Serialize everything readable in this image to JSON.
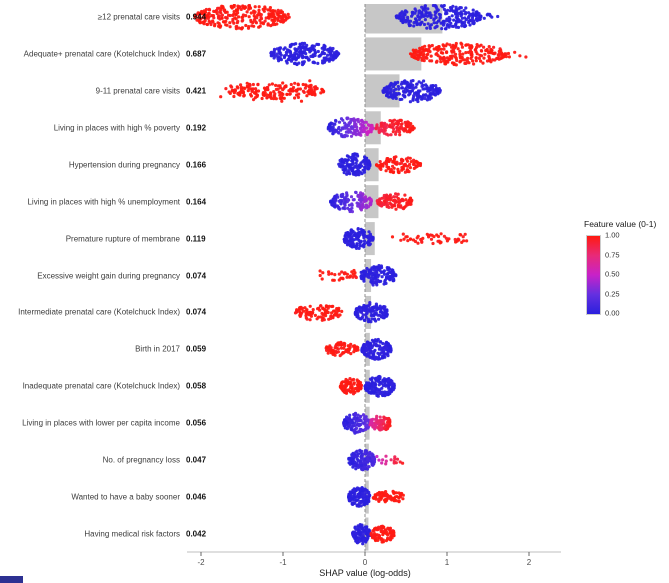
{
  "chart_data": {
    "type": "scatter",
    "subtype": "shap-summary-beeswarm",
    "title": "",
    "xlabel": "SHAP value (log-odds)",
    "xlim": [
      -2.2,
      2.4
    ],
    "x_ticks": [
      -2,
      -1,
      0,
      1,
      2
    ],
    "zero_line": true,
    "grid": false,
    "bar_color": "#c7c7c7",
    "gradient_stops": [
      {
        "at": 0.0,
        "color": "#2a20dd"
      },
      {
        "at": 0.25,
        "color": "#6430e0"
      },
      {
        "at": 0.5,
        "color": "#c822c8"
      },
      {
        "at": 0.75,
        "color": "#e82a78"
      },
      {
        "at": 1.0,
        "color": "#ff1a10"
      }
    ],
    "legend": {
      "title": "Feature value (0-1)",
      "tick_labels": [
        "1.00",
        "0.75",
        "0.50",
        "0.25",
        "0.00"
      ],
      "position": "right"
    },
    "features": [
      {
        "label": "≥12 prenatal care visits",
        "importance": "0.944",
        "mean_abs_shap": 0.944,
        "clusters": [
          {
            "x0": -2.08,
            "x1": -0.92,
            "v0": 1,
            "v1": 1,
            "n": 260,
            "amp": 12,
            "shape": "dense"
          },
          {
            "x0": 0.38,
            "x1": 1.42,
            "v0": 0,
            "v1": 0,
            "n": 260,
            "amp": 12,
            "shape": "dense"
          },
          {
            "x0": 1.42,
            "x1": 1.62,
            "v0": 0,
            "v1": 0,
            "n": 7,
            "amp": 4,
            "shape": "spread"
          }
        ]
      },
      {
        "label": "Adequate+ prenatal care (Kotelchuck Index)",
        "importance": "0.687",
        "mean_abs_shap": 0.687,
        "clusters": [
          {
            "x0": -1.15,
            "x1": -0.32,
            "v0": 0,
            "v1": 0,
            "n": 230,
            "amp": 11,
            "shape": "dense"
          },
          {
            "x0": 0.55,
            "x1": 1.72,
            "v0": 1,
            "v1": 1,
            "n": 230,
            "amp": 11,
            "shape": "dense"
          },
          {
            "x0": 1.72,
            "x1": 1.97,
            "v0": 1,
            "v1": 1,
            "n": 6,
            "amp": 4,
            "shape": "spread"
          }
        ]
      },
      {
        "label": "9-11 prenatal care visits",
        "importance": "0.421",
        "mean_abs_shap": 0.421,
        "clusters": [
          {
            "x0": -1.62,
            "x1": -0.5,
            "v0": 1,
            "v1": 1,
            "n": 150,
            "amp": 8,
            "shape": "dense"
          },
          {
            "x0": -1.78,
            "x1": -1.5,
            "v0": 1,
            "v1": 1,
            "n": 10,
            "amp": 6,
            "shape": "spread"
          },
          {
            "x0": -1.55,
            "x1": -0.55,
            "v0": 1,
            "v1": 1,
            "n": 30,
            "amp": 11,
            "shape": "spread"
          },
          {
            "x0": 0.22,
            "x1": 0.92,
            "v0": 0,
            "v1": 0,
            "n": 190,
            "amp": 11,
            "shape": "dense"
          }
        ]
      },
      {
        "label": "Living in places with high % poverty",
        "importance": "0.192",
        "mean_abs_shap": 0.192,
        "clusters": [
          {
            "x0": -0.45,
            "x1": 0.1,
            "v0": 0,
            "v1": 0.55,
            "n": 140,
            "amp": 10,
            "shape": "dense"
          },
          {
            "x0": 0.12,
            "x1": 0.6,
            "v0": 0.85,
            "v1": 1,
            "n": 100,
            "amp": 8,
            "shape": "dense"
          }
        ]
      },
      {
        "label": "Hypertension during pregnancy",
        "importance": "0.166",
        "mean_abs_shap": 0.166,
        "clusters": [
          {
            "x0": -0.32,
            "x1": 0.06,
            "v0": 0,
            "v1": 0,
            "n": 140,
            "amp": 11,
            "shape": "dense"
          },
          {
            "x0": 0.14,
            "x1": 0.68,
            "v0": 1,
            "v1": 1,
            "n": 110,
            "amp": 8,
            "shape": "dense"
          }
        ]
      },
      {
        "label": "Living in places with high % unemployment",
        "importance": "0.164",
        "mean_abs_shap": 0.164,
        "clusters": [
          {
            "x0": -0.42,
            "x1": 0.08,
            "v0": 0,
            "v1": 0.45,
            "n": 140,
            "amp": 10,
            "shape": "dense"
          },
          {
            "x0": 0.15,
            "x1": 0.58,
            "v0": 0.9,
            "v1": 1,
            "n": 100,
            "amp": 8,
            "shape": "dense"
          }
        ]
      },
      {
        "label": "Premature rupture of membrane",
        "importance": "0.119",
        "mean_abs_shap": 0.119,
        "clusters": [
          {
            "x0": -0.26,
            "x1": 0.1,
            "v0": 0,
            "v1": 0,
            "n": 140,
            "amp": 10,
            "shape": "dense"
          },
          {
            "x0": 0.32,
            "x1": 1.25,
            "v0": 1,
            "v1": 1,
            "n": 50,
            "amp": 5,
            "shape": "spread"
          }
        ]
      },
      {
        "label": "Excessive weight gain during pregnancy",
        "importance": "0.074",
        "mean_abs_shap": 0.074,
        "clusters": [
          {
            "x0": -0.55,
            "x1": -0.1,
            "v0": 1,
            "v1": 1,
            "n": 30,
            "amp": 5,
            "shape": "spread"
          },
          {
            "x0": -0.06,
            "x1": 0.38,
            "v0": 0,
            "v1": 0,
            "n": 140,
            "amp": 10,
            "shape": "dense"
          }
        ]
      },
      {
        "label": "Intermediate prenatal care (Kotelchuck Index)",
        "importance": "0.074",
        "mean_abs_shap": 0.074,
        "clusters": [
          {
            "x0": -0.85,
            "x1": -0.28,
            "v0": 1,
            "v1": 1,
            "n": 100,
            "amp": 8,
            "shape": "dense"
          },
          {
            "x0": -0.12,
            "x1": 0.28,
            "v0": 0,
            "v1": 0,
            "n": 140,
            "amp": 10,
            "shape": "dense"
          }
        ]
      },
      {
        "label": "Birth in 2017",
        "importance": "0.059",
        "mean_abs_shap": 0.059,
        "clusters": [
          {
            "x0": -0.48,
            "x1": -0.08,
            "v0": 1,
            "v1": 1,
            "n": 80,
            "amp": 7,
            "shape": "dense"
          },
          {
            "x0": -0.04,
            "x1": 0.32,
            "v0": 0,
            "v1": 0,
            "n": 140,
            "amp": 10,
            "shape": "dense"
          }
        ]
      },
      {
        "label": "Inadequate prenatal care (Kotelchuck Index)",
        "importance": "0.058",
        "mean_abs_shap": 0.058,
        "clusters": [
          {
            "x0": -0.3,
            "x1": -0.04,
            "v0": 1,
            "v1": 1,
            "n": 90,
            "amp": 8,
            "shape": "dense"
          },
          {
            "x0": 0.0,
            "x1": 0.36,
            "v0": 0,
            "v1": 0,
            "n": 140,
            "amp": 10,
            "shape": "dense"
          }
        ]
      },
      {
        "label": "Living in places with lower per capita income",
        "importance": "0.056",
        "mean_abs_shap": 0.056,
        "clusters": [
          {
            "x0": -0.26,
            "x1": 0.06,
            "v0": 0,
            "v1": 0.25,
            "n": 130,
            "amp": 10,
            "shape": "dense"
          },
          {
            "x0": 0.06,
            "x1": 0.32,
            "v0": 0.6,
            "v1": 1,
            "n": 90,
            "amp": 8,
            "shape": "dense"
          }
        ]
      },
      {
        "label": "No. of pregnancy loss",
        "importance": "0.047",
        "mean_abs_shap": 0.047,
        "clusters": [
          {
            "x0": -0.2,
            "x1": 0.12,
            "v0": 0,
            "v1": 0.15,
            "n": 140,
            "amp": 10,
            "shape": "dense"
          },
          {
            "x0": 0.14,
            "x1": 0.46,
            "v0": 0.5,
            "v1": 1,
            "n": 16,
            "amp": 4,
            "shape": "spread"
          }
        ]
      },
      {
        "label": "Wanted to have a baby sooner",
        "importance": "0.046",
        "mean_abs_shap": 0.046,
        "clusters": [
          {
            "x0": -0.2,
            "x1": 0.06,
            "v0": 0,
            "v1": 0,
            "n": 120,
            "amp": 10,
            "shape": "dense"
          },
          {
            "x0": 0.1,
            "x1": 0.5,
            "v0": 1,
            "v1": 1,
            "n": 70,
            "amp": 6,
            "shape": "dense"
          }
        ]
      },
      {
        "label": "Having medical risk factors",
        "importance": "0.042",
        "mean_abs_shap": 0.042,
        "clusters": [
          {
            "x0": -0.15,
            "x1": 0.06,
            "v0": 0,
            "v1": 0,
            "n": 110,
            "amp": 10,
            "shape": "dense"
          },
          {
            "x0": 0.06,
            "x1": 0.36,
            "v0": 1,
            "v1": 1,
            "n": 85,
            "amp": 8,
            "shape": "dense"
          }
        ]
      }
    ]
  }
}
